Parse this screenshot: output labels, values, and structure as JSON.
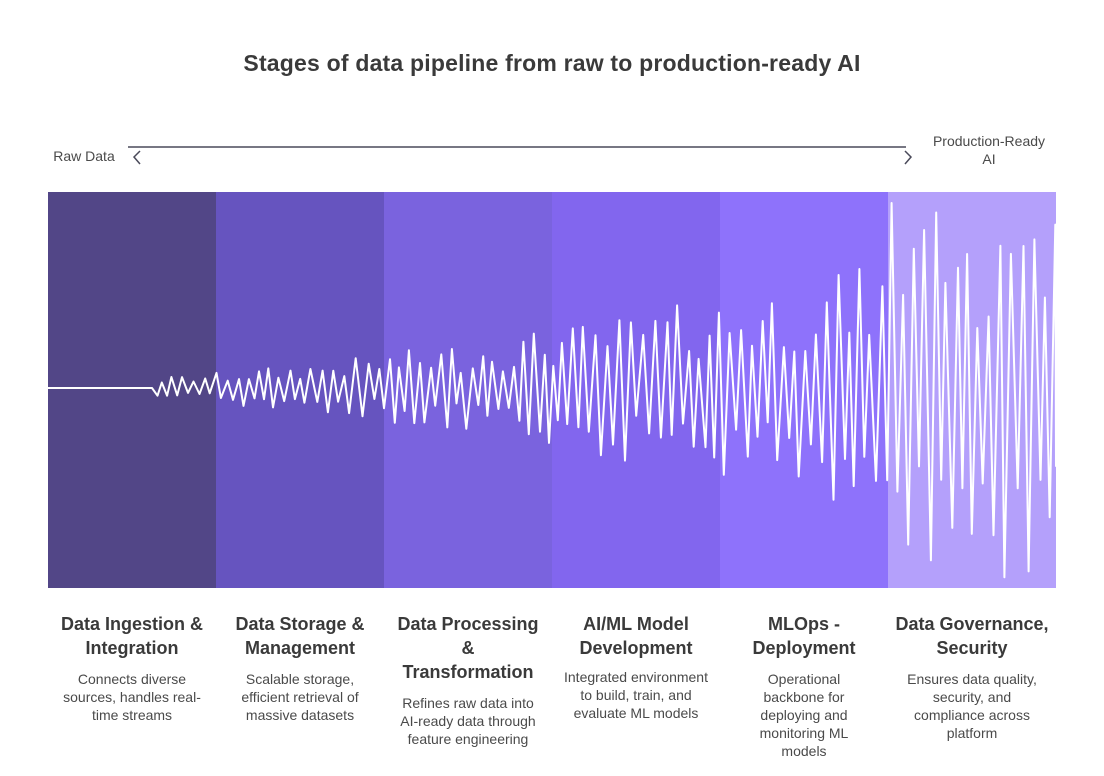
{
  "title": "Stages of data pipeline from raw to production-ready AI",
  "axis": {
    "left_label": "Raw Data",
    "right_label": "Production-Ready AI",
    "line_color": "#4a4a5a"
  },
  "stages": [
    {
      "title": "Data Ingestion & Integration",
      "description": "Connects diverse sources, handles real-time streams",
      "color": "#524687"
    },
    {
      "title": "Data Storage & Management",
      "description": "Scalable storage, efficient retrieval of massive datasets",
      "color": "#6654bf"
    },
    {
      "title": "Data Processing & Transformation",
      "description": "Refines raw data into AI-ready data through feature engineering",
      "color": "#7a63de"
    },
    {
      "title": "AI/ML Model Development",
      "description": "Integrated environment to build, train, and evaluate ML models",
      "color": "#8266ee"
    },
    {
      "title": "MLOps - Deployment",
      "description": "Operational backbone for deploying and monitoring ML models",
      "color": "#8e72fb"
    },
    {
      "title": "Data Governance, Security",
      "description": "Ensures data quality, security, and compliance across platform",
      "color": "#b4a0fb"
    }
  ],
  "wave": {
    "stroke": "#ffffff",
    "stroke_width": 2
  }
}
